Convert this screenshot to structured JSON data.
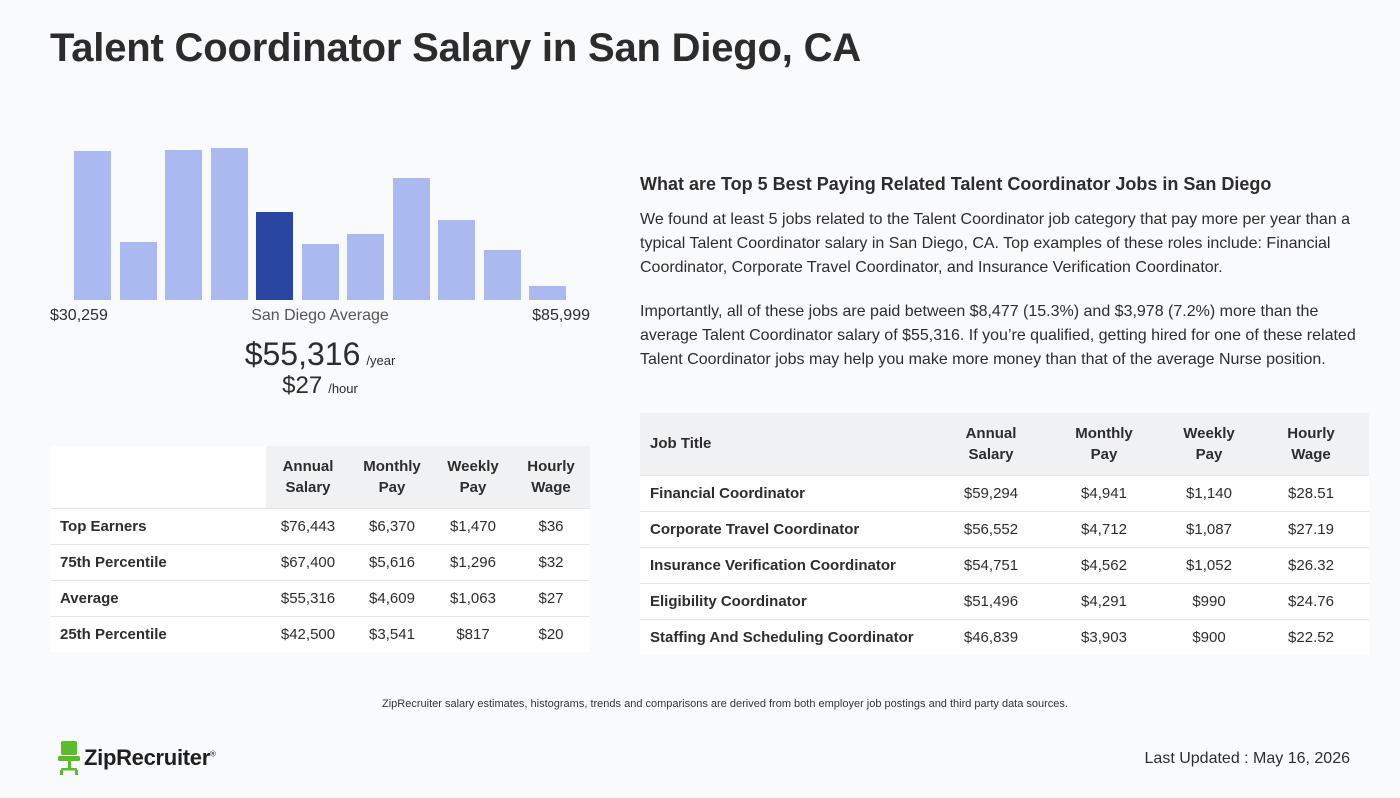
{
  "page": {
    "title": "Talent Coordinator Salary in San Diego, CA"
  },
  "histogram": {
    "min_label": "$30,259",
    "max_label": "$85,999",
    "avg_label": "San Diego Average",
    "bars": [
      {
        "value": 0.93,
        "highlight": false
      },
      {
        "value": 0.36,
        "highlight": false
      },
      {
        "value": 0.94,
        "highlight": false
      },
      {
        "value": 0.95,
        "highlight": false
      },
      {
        "value": 0.55,
        "highlight": true
      },
      {
        "value": 0.35,
        "highlight": false
      },
      {
        "value": 0.41,
        "highlight": false
      },
      {
        "value": 0.76,
        "highlight": false
      },
      {
        "value": 0.5,
        "highlight": false
      },
      {
        "value": 0.31,
        "highlight": false
      },
      {
        "value": 0.09,
        "highlight": false
      }
    ],
    "bar_color": "#aab9f0",
    "highlight_color": "#2a46a3"
  },
  "average": {
    "yearly": "$55,316",
    "yearly_unit": "/year",
    "hourly": "$27",
    "hourly_unit": "/hour"
  },
  "percentile_table": {
    "headers": [
      {
        "line1": "Annual",
        "line2": "Salary"
      },
      {
        "line1": "Monthly",
        "line2": "Pay"
      },
      {
        "line1": "Weekly",
        "line2": "Pay"
      },
      {
        "line1": "Hourly",
        "line2": "Wage"
      }
    ],
    "rows": [
      {
        "label": "Top Earners",
        "annual": "$76,443",
        "monthly": "$6,370",
        "weekly": "$1,470",
        "hourly": "$36"
      },
      {
        "label": "75th Percentile",
        "annual": "$67,400",
        "monthly": "$5,616",
        "weekly": "$1,296",
        "hourly": "$32"
      },
      {
        "label": "Average",
        "annual": "$55,316",
        "monthly": "$4,609",
        "weekly": "$1,063",
        "hourly": "$27"
      },
      {
        "label": "25th Percentile",
        "annual": "$42,500",
        "monthly": "$3,541",
        "weekly": "$817",
        "hourly": "$20"
      }
    ]
  },
  "related": {
    "heading": "What are Top 5 Best Paying Related Talent Coordinator Jobs in San Diego",
    "paragraph1": "We found at least 5 jobs related to the Talent Coordinator job category that pay more per year than a typical Talent Coordinator salary in San Diego, CA. Top examples of these roles include: Financial Coordinator, Corporate Travel Coordinator, and Insurance Verification Coordinator.",
    "paragraph2": "Importantly, all of these jobs are paid between $8,477 (15.3%) and $3,978 (7.2%) more than the average Talent Coordinator salary of $55,316. If you’re qualified, getting hired for one of these related Talent Coordinator jobs may help you make more money than that of the average Nurse position."
  },
  "jobs_table": {
    "title_header": "Job Title",
    "headers": [
      {
        "line1": "Annual",
        "line2": "Salary"
      },
      {
        "line1": "Monthly",
        "line2": "Pay"
      },
      {
        "line1": "Weekly",
        "line2": "Pay"
      },
      {
        "line1": "Hourly",
        "line2": "Wage"
      }
    ],
    "rows": [
      {
        "title": "Financial Coordinator",
        "annual": "$59,294",
        "monthly": "$4,941",
        "weekly": "$1,140",
        "hourly": "$28.51"
      },
      {
        "title": "Corporate Travel Coordinator",
        "annual": "$56,552",
        "monthly": "$4,712",
        "weekly": "$1,087",
        "hourly": "$27.19"
      },
      {
        "title": "Insurance Verification Coordinator",
        "annual": "$54,751",
        "monthly": "$4,562",
        "weekly": "$1,052",
        "hourly": "$26.32"
      },
      {
        "title": "Eligibility Coordinator",
        "annual": "$51,496",
        "monthly": "$4,291",
        "weekly": "$990",
        "hourly": "$24.76"
      },
      {
        "title": "Staffing And Scheduling Coordinator",
        "annual": "$46,839",
        "monthly": "$3,903",
        "weekly": "$900",
        "hourly": "$22.52"
      }
    ]
  },
  "footer": {
    "disclaimer": "ZipRecruiter salary estimates, histograms, trends and comparisons are derived from both employer job postings and third party data sources.",
    "logo_text": "ZipRecruiter",
    "logo_mark": "®",
    "logo_icon": "chair-icon",
    "logo_color": "#5cbb2b",
    "last_updated": "Last Updated : May 16, 2026"
  }
}
